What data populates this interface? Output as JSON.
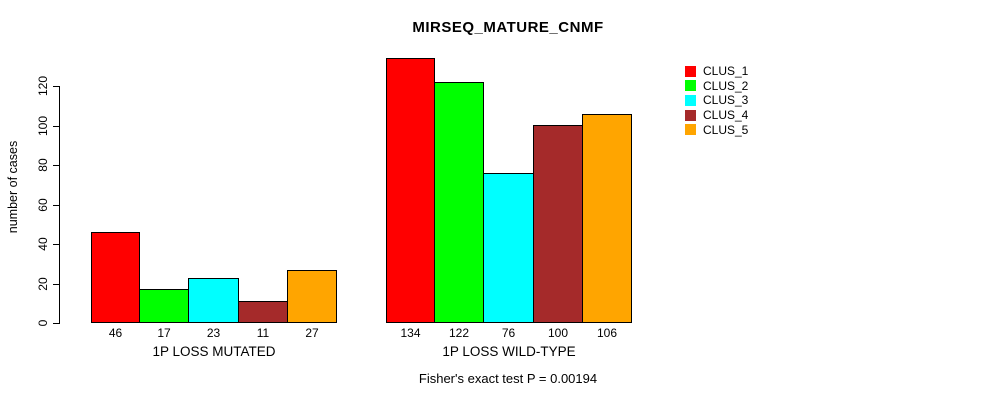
{
  "chart_data": {
    "type": "bar",
    "title": "MIRSEQ_MATURE_CNMF",
    "ylabel": "number of cases",
    "xlabel": "",
    "caption": "Fisher's exact test P = 0.00194",
    "yticks": [
      0,
      20,
      40,
      60,
      80,
      100,
      120
    ],
    "ylim": [
      0,
      120
    ],
    "grid": false,
    "legend_position": "right",
    "bar_value_labels_shown": true,
    "categories": [
      "1P LOSS MUTATED",
      "1P LOSS WILD-TYPE"
    ],
    "series": [
      {
        "name": "CLUS_1",
        "color": "#FF0000",
        "values": [
          46,
          134
        ]
      },
      {
        "name": "CLUS_2",
        "color": "#00FF00",
        "values": [
          17,
          122
        ]
      },
      {
        "name": "CLUS_3",
        "color": "#00FFFF",
        "values": [
          23,
          76
        ]
      },
      {
        "name": "CLUS_4",
        "color": "#A52A2A",
        "values": [
          11,
          100
        ]
      },
      {
        "name": "CLUS_5",
        "color": "#FFA500",
        "values": [
          27,
          106
        ]
      }
    ],
    "colors": {
      "axis": "#000000",
      "text": "#000000",
      "background": "#FFFFFF"
    }
  }
}
